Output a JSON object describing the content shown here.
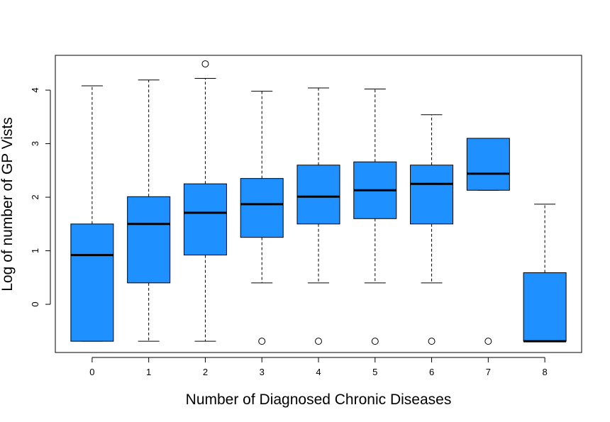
{
  "chart_data": {
    "type": "boxplot",
    "title": "",
    "xlabel": "Number of Diagnosed Chronic Diseases",
    "ylabel": "Log of number of GP Vists",
    "ylim": [
      -0.9,
      4.65
    ],
    "y_ticks": [
      0,
      1,
      2,
      3,
      4
    ],
    "box_color": "#1E90FF",
    "categories": [
      "0",
      "1",
      "2",
      "3",
      "4",
      "5",
      "6",
      "7",
      "8"
    ],
    "boxes": [
      {
        "category": "0",
        "whisker_low": -0.69,
        "q1": -0.69,
        "median": 0.92,
        "q3": 1.5,
        "whisker_high": 4.08,
        "outliers": []
      },
      {
        "category": "1",
        "whisker_low": -0.69,
        "q1": 0.4,
        "median": 1.5,
        "q3": 2.01,
        "whisker_high": 4.19,
        "outliers": []
      },
      {
        "category": "2",
        "whisker_low": -0.69,
        "q1": 0.92,
        "median": 1.71,
        "q3": 2.25,
        "whisker_high": 4.22,
        "outliers": [
          4.49
        ]
      },
      {
        "category": "3",
        "whisker_low": 0.4,
        "q1": 1.25,
        "median": 1.87,
        "q3": 2.35,
        "whisker_high": 3.98,
        "outliers": [
          -0.69
        ]
      },
      {
        "category": "4",
        "whisker_low": 0.4,
        "q1": 1.5,
        "median": 2.01,
        "q3": 2.6,
        "whisker_high": 4.04,
        "outliers": [
          -0.69
        ]
      },
      {
        "category": "5",
        "whisker_low": 0.4,
        "q1": 1.6,
        "median": 2.13,
        "q3": 2.66,
        "whisker_high": 4.02,
        "outliers": [
          -0.69
        ]
      },
      {
        "category": "6",
        "whisker_low": 0.4,
        "q1": 1.5,
        "median": 2.25,
        "q3": 2.6,
        "whisker_high": 3.54,
        "outliers": [
          -0.69
        ]
      },
      {
        "category": "7",
        "whisker_low": 2.13,
        "q1": 2.13,
        "median": 2.44,
        "q3": 3.1,
        "whisker_high": 3.1,
        "outliers": [
          -0.69
        ]
      },
      {
        "category": "8",
        "whisker_low": -0.69,
        "q1": -0.69,
        "median": -0.69,
        "q3": 0.59,
        "whisker_high": 1.87,
        "outliers": []
      }
    ]
  }
}
